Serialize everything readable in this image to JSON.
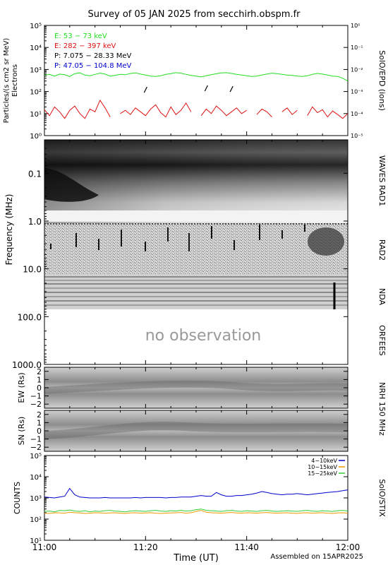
{
  "title": "Survey of 05 JAN 2025 from secchirh.obspm.fr",
  "footer": "Assembled on 15APR2025",
  "xaxis": {
    "label": "Time (UT)",
    "ticks": [
      "11:00",
      "11:20",
      "11:40",
      "12:00"
    ],
    "tick_minutes": [
      0,
      20,
      40,
      60
    ]
  },
  "panels": {
    "epd": {
      "ylabel_left": "Particles/(s cm2 sr MeV)",
      "ylabel_left2": "Electrons",
      "ylabel_right": "SolO/EPD (ions)",
      "left_ticks": [
        "10⁰",
        "10¹",
        "10²",
        "10³",
        "10⁴",
        "10⁵"
      ],
      "right_ticks": [
        "10⁻⁵",
        "10⁻⁴",
        "10⁻³",
        "10⁻²",
        "10⁻¹",
        "10⁰"
      ]
    },
    "radio": {
      "ylabel": "Frequency (MHz)",
      "ticks": [
        "0.1",
        "1.0",
        "10.0",
        "100.0",
        "1000.0"
      ],
      "labels_right": [
        "WAVES RAD1",
        "RAD2",
        "NDA",
        "ORFEES"
      ],
      "no_observation": "no observation"
    },
    "nrh_ew": {
      "ylabel": "EW (Rs)",
      "ticks": [
        "2",
        "1",
        "0",
        "−1",
        "−2"
      ]
    },
    "nrh_sn": {
      "ylabel": "SN (Rs)",
      "ticks": [
        "2",
        "1",
        "0",
        "−1",
        "−2"
      ]
    },
    "nrh_label": "NRH 150 MHz",
    "stix": {
      "ylabel": "COUNTS",
      "ylabel_right": "SolO/STIX",
      "ticks": [
        "10¹",
        "10²",
        "10³",
        "10⁴",
        "10⁵"
      ]
    }
  },
  "colors": {
    "e_low": "#22dd22",
    "e_high": "#dd1111",
    "p_low": "#000000",
    "p_high": "#0000cc",
    "stix_4_10": "#0000cc",
    "stix_10_15": "#ee9900",
    "stix_15_25": "#33cc33"
  },
  "chart_data": [
    {
      "type": "line",
      "name": "SolO/EPD",
      "yscale": "log",
      "ylim": [
        1,
        100000
      ],
      "xlim": [
        "11:00",
        "12:00"
      ],
      "legend": [
        {
          "label": "E: 53 − 73 keV",
          "color_key": "e_low"
        },
        {
          "label": "E: 282 − 397 keV",
          "color_key": "e_high"
        },
        {
          "label": "P: 7.075 − 28.33 MeV",
          "color_key": "p_low"
        },
        {
          "label": "P: 47.05 − 104.8 MeV",
          "color_key": "p_high"
        }
      ],
      "series": [
        {
          "label": "E: 53 − 73 keV",
          "color_key": "e_low",
          "values": [
            550,
            600,
            500,
            620,
            580,
            480,
            650,
            700,
            560,
            520,
            600,
            680,
            620,
            500,
            540,
            600,
            580,
            660,
            700,
            620,
            560,
            500,
            480,
            520,
            600,
            650,
            720,
            680,
            600,
            540,
            500,
            460,
            520,
            580,
            640,
            700,
            720,
            660,
            600,
            560,
            520,
            480,
            500,
            560,
            620,
            680,
            650,
            600,
            560,
            540,
            500,
            480,
            520,
            600,
            660,
            620,
            560,
            500,
            480,
            400,
            300
          ]
        },
        {
          "label": "E: 282 − 397 keV",
          "color_key": "e_high",
          "values": [
            15,
            8,
            20,
            12,
            6,
            14,
            22,
            10,
            6,
            16,
            12,
            40,
            18,
            7,
            null,
            10,
            14,
            9,
            18,
            12,
            8,
            16,
            25,
            11,
            7,
            20,
            9,
            14,
            30,
            12,
            null,
            8,
            16,
            10,
            22,
            14,
            8,
            12,
            18,
            10,
            14,
            null,
            9,
            16,
            12,
            7,
            null,
            12,
            18,
            9,
            14,
            null,
            8,
            20,
            11,
            15,
            7,
            13,
            9,
            6,
            10
          ]
        },
        {
          "label": "P: 7.075 − 28.33 MeV",
          "color_key": "p_low",
          "values": [
            null,
            null,
            null,
            null,
            null,
            null,
            null,
            null,
            null,
            null,
            null,
            null,
            null,
            null,
            null,
            null,
            null,
            null,
            null,
            null,
            120,
            null,
            null,
            null,
            null,
            null,
            null,
            null,
            null,
            null,
            null,
            null,
            140,
            null,
            null,
            null,
            null,
            130,
            null,
            null,
            null,
            null,
            null,
            null,
            null,
            null,
            null,
            null,
            null,
            null,
            null,
            null,
            null,
            null,
            null,
            null,
            null,
            null,
            null,
            null,
            null
          ]
        },
        {
          "label": "P: 47.05 − 104.8 MeV",
          "color_key": "p_high",
          "values": []
        }
      ]
    },
    {
      "type": "heatmap",
      "name": "Radio dynamic spectrum",
      "yscale": "log",
      "ylim_mhz": [
        0.02,
        1000
      ],
      "bands_mhz": {
        "RAD1": [
          0.02,
          1.0
        ],
        "RAD2": [
          1.0,
          14
        ],
        "NDA": [
          14,
          80
        ],
        "ORFEES": [
          80,
          1000
        ]
      },
      "orfees_status": "no observation"
    },
    {
      "type": "heatmap",
      "name": "NRH 150 MHz EW",
      "ylim": [
        -2.5,
        2.5
      ],
      "ticks": [
        2,
        1,
        0,
        -1,
        -2
      ]
    },
    {
      "type": "heatmap",
      "name": "NRH 150 MHz SN",
      "ylim": [
        -2.5,
        2.5
      ],
      "ticks": [
        2,
        1,
        0,
        -1,
        -2
      ]
    },
    {
      "type": "line",
      "name": "SolO/STIX",
      "yscale": "log",
      "ylim": [
        10,
        100000
      ],
      "legend": [
        {
          "label": "4−10keV",
          "color_key": "stix_4_10"
        },
        {
          "label": "10−15keV",
          "color_key": "stix_10_15"
        },
        {
          "label": "15−25keV",
          "color_key": "stix_15_25"
        }
      ],
      "series": [
        {
          "label": "4−10keV",
          "color_key": "stix_4_10",
          "values": [
            1100,
            1050,
            1000,
            1100,
            1200,
            2800,
            1400,
            1100,
            1050,
            1000,
            1000,
            1000,
            1050,
            1000,
            1000,
            1000,
            1000,
            1000,
            1050,
            1000,
            1050,
            1050,
            1050,
            1050,
            1000,
            1050,
            1050,
            1100,
            1100,
            1100,
            1200,
            1300,
            1200,
            1200,
            1800,
            1400,
            1200,
            1200,
            1300,
            1300,
            1400,
            1500,
            1700,
            2000,
            1800,
            1600,
            1500,
            1400,
            1500,
            1500,
            1600,
            1500,
            1400,
            1500,
            1600,
            1700,
            1800,
            1900,
            2000,
            2200,
            2400
          ]
        },
        {
          "label": "10−15keV",
          "color_key": "stix_10_15",
          "values": [
            190,
            185,
            200,
            195,
            190,
            210,
            200,
            195,
            185,
            190,
            200,
            195,
            190,
            195,
            200,
            190,
            185,
            195,
            200,
            190,
            195,
            200,
            190,
            185,
            190,
            195,
            200,
            205,
            190,
            200,
            230,
            260,
            210,
            200,
            195,
            190,
            200,
            205,
            195,
            190,
            200,
            195,
            190,
            200,
            205,
            195,
            190,
            195,
            200,
            190,
            185,
            195,
            200,
            190,
            195,
            200,
            190,
            185,
            195,
            200,
            190
          ]
        },
        {
          "label": "15−25keV",
          "color_key": "stix_15_25",
          "values": [
            230,
            240,
            220,
            260,
            250,
            270,
            240,
            230,
            250,
            220,
            240,
            230,
            250,
            260,
            240,
            230,
            220,
            240,
            250,
            240,
            230,
            250,
            260,
            240,
            230,
            250,
            240,
            260,
            240,
            250,
            280,
            300,
            260,
            250,
            240,
            230,
            250,
            260,
            240,
            230,
            250,
            240,
            230,
            250,
            260,
            240,
            230,
            240,
            250,
            240,
            230,
            250,
            260,
            240,
            230,
            250,
            240,
            230,
            250,
            260,
            240
          ]
        }
      ]
    }
  ]
}
